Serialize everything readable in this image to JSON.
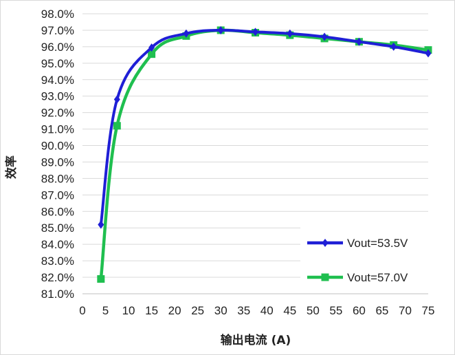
{
  "chart_data": {
    "type": "line",
    "title": "",
    "xlabel": "输出电流 (A)",
    "ylabel": "效率",
    "xlim": [
      0,
      75
    ],
    "ylim": [
      81.0,
      98.0
    ],
    "x_ticks": [
      0,
      5,
      10,
      15,
      20,
      25,
      30,
      35,
      40,
      45,
      50,
      55,
      60,
      65,
      70,
      75
    ],
    "y_ticks": [
      81.0,
      82.0,
      83.0,
      84.0,
      85.0,
      86.0,
      87.0,
      88.0,
      89.0,
      90.0,
      91.0,
      92.0,
      93.0,
      94.0,
      95.0,
      96.0,
      97.0,
      98.0
    ],
    "y_tick_format": "percent_1dp",
    "grid": "horizontal",
    "legend_position": "bottom-right",
    "series": [
      {
        "name": "Vout=53.5V",
        "color": "#1f1fd6",
        "marker": "diamond",
        "x": [
          4,
          7.5,
          15,
          22.5,
          30,
          37.5,
          45,
          52.5,
          60,
          67.5,
          75
        ],
        "y": [
          85.2,
          92.8,
          95.95,
          96.8,
          97.0,
          96.9,
          96.8,
          96.6,
          96.3,
          96.0,
          95.6
        ]
      },
      {
        "name": "Vout=57.0V",
        "color": "#1fbf4f",
        "marker": "square",
        "x": [
          4,
          7.5,
          15,
          22.5,
          30,
          37.5,
          45,
          52.5,
          60,
          67.5,
          75
        ],
        "y": [
          81.9,
          91.2,
          95.55,
          96.65,
          97.0,
          96.85,
          96.7,
          96.5,
          96.3,
          96.1,
          95.8
        ]
      }
    ]
  }
}
